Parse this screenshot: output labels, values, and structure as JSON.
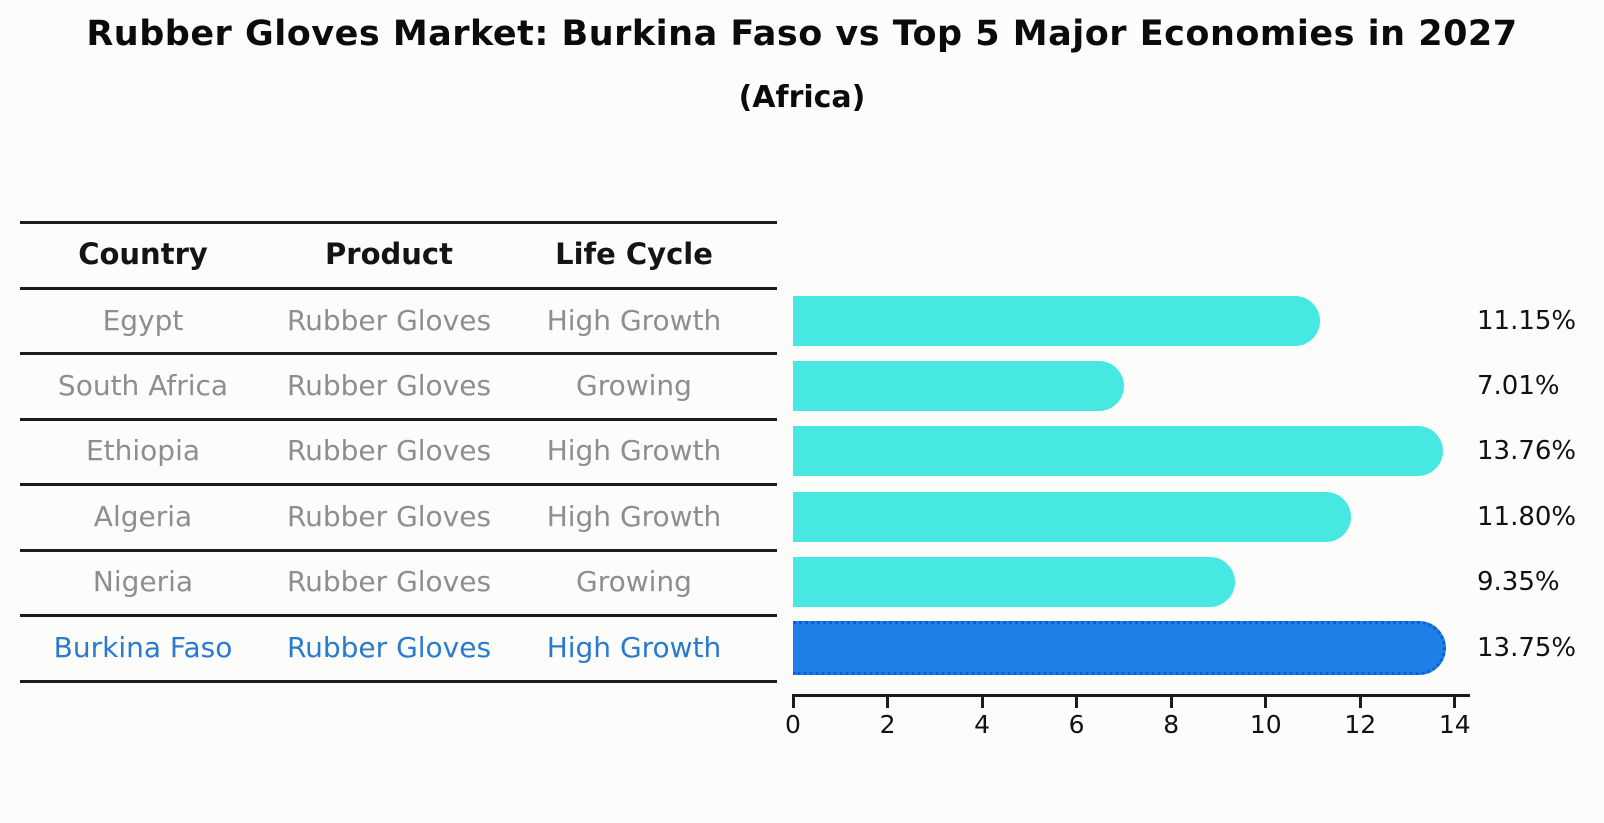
{
  "title": "Rubber Gloves Market: Burkina Faso vs Top 5 Major Economies in 2027",
  "subtitle": "(Africa)",
  "table": {
    "headers": [
      "Country",
      "Product",
      "Life Cycle"
    ],
    "rows": [
      {
        "country": "Egypt",
        "product": "Rubber Gloves",
        "life_cycle": "High Growth",
        "highlight": false
      },
      {
        "country": "South Africa",
        "product": "Rubber Gloves",
        "life_cycle": "Growing",
        "highlight": false
      },
      {
        "country": "Ethiopia",
        "product": "Rubber Gloves",
        "life_cycle": "High Growth",
        "highlight": false
      },
      {
        "country": "Algeria",
        "product": "Rubber Gloves",
        "life_cycle": "High Growth",
        "highlight": false
      },
      {
        "country": "Nigeria",
        "product": "Rubber Gloves",
        "life_cycle": "Growing",
        "highlight": false
      },
      {
        "country": "Burkina Faso",
        "product": "Rubber Gloves",
        "life_cycle": "High Growth",
        "highlight": true
      }
    ]
  },
  "chart_data": {
    "type": "bar",
    "orientation": "horizontal",
    "title": "Rubber Gloves Market: Burkina Faso vs Top 5 Major Economies in 2027 (Africa)",
    "categories": [
      "Egypt",
      "South Africa",
      "Ethiopia",
      "Algeria",
      "Nigeria",
      "Burkina Faso"
    ],
    "values": [
      11.15,
      7.01,
      13.76,
      11.8,
      9.35,
      13.75
    ],
    "value_labels": [
      "11.15%",
      "7.01%",
      "13.76%",
      "11.80%",
      "9.35%",
      "13.75%"
    ],
    "xlabel": "",
    "ylabel": "",
    "xlim": [
      0,
      14.3
    ],
    "x_ticks": [
      0,
      2,
      4,
      6,
      8,
      10,
      12,
      14
    ],
    "grid": false,
    "legend": false,
    "highlight_category": "Burkina Faso",
    "colors": {
      "bar": "#47e7e2",
      "highlight_bar": "#1e7fe6",
      "highlight_border": "#0c5fd2",
      "highlight_text": "#2a7ace",
      "row_text": "#8e8e8e",
      "header_text": "#141414",
      "axis": "#1c1c1c",
      "background": "#fcfdfb"
    }
  }
}
